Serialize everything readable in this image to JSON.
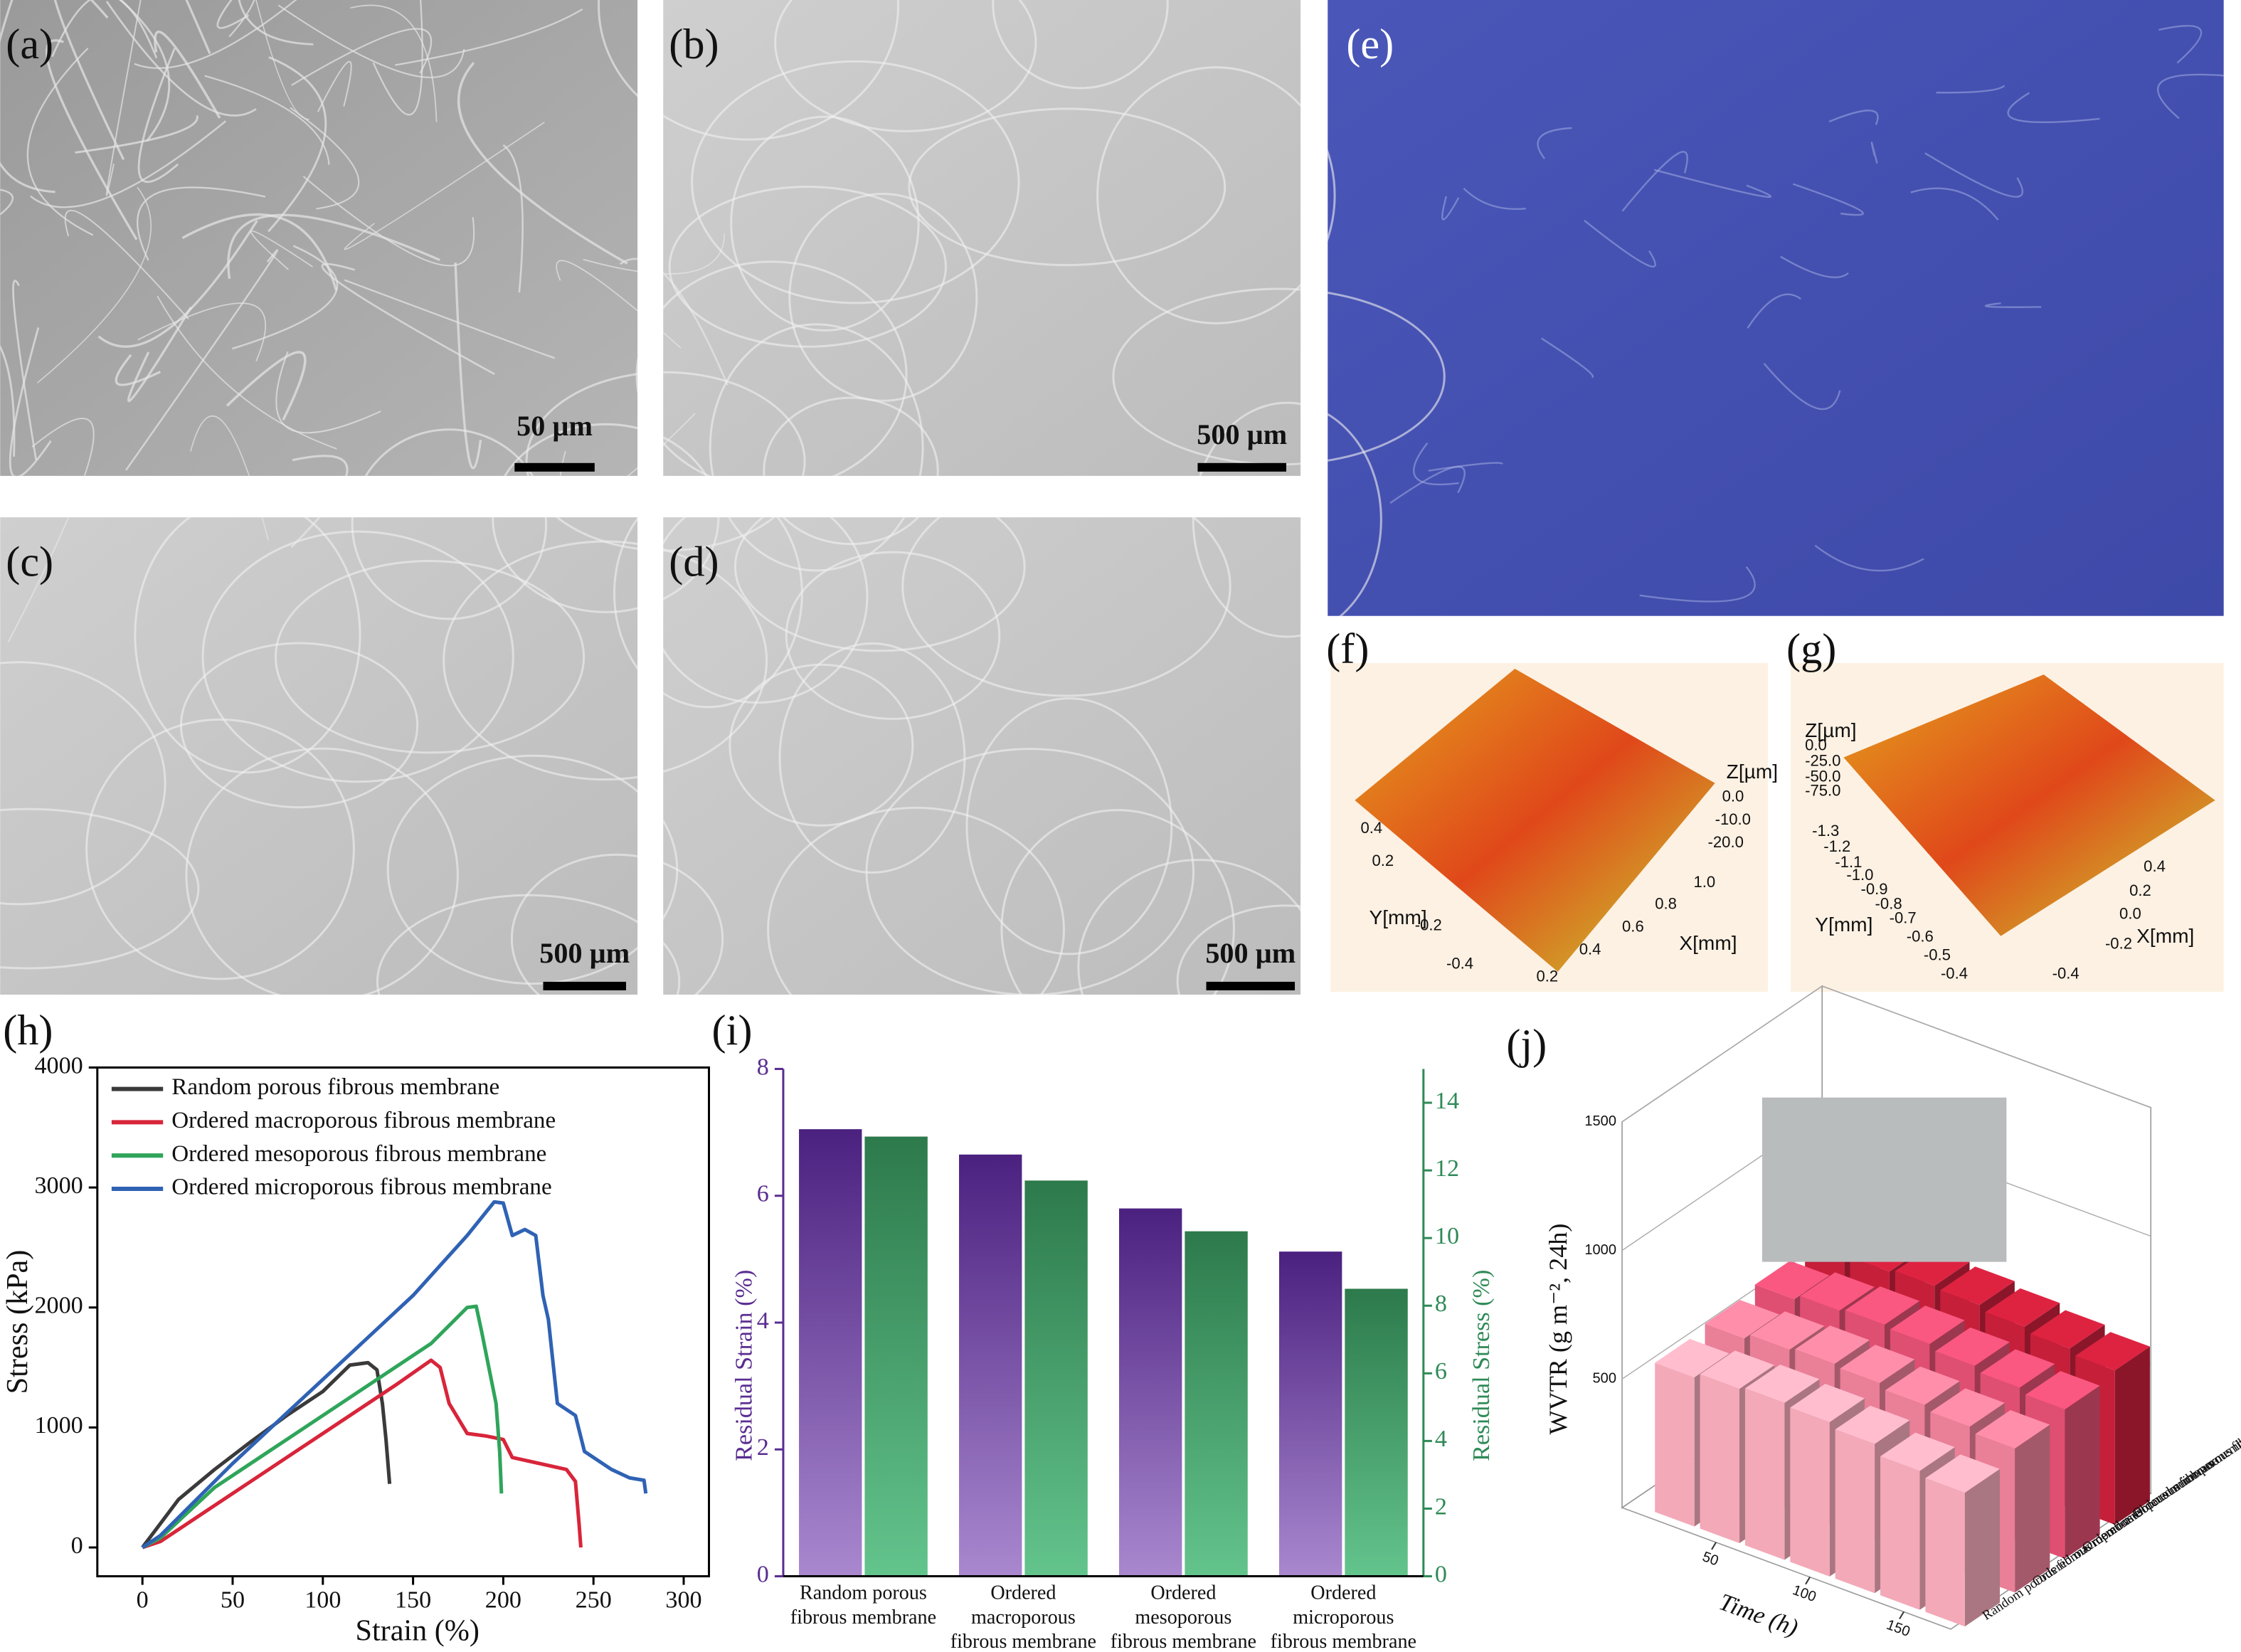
{
  "panels": [
    {
      "label": "(a)",
      "scale_bar": "50 µm"
    },
    {
      "label": "(b)",
      "scale_bar": "500 µm"
    },
    {
      "label": "(c)",
      "scale_bar": "500 µm"
    },
    {
      "label": "(d)",
      "scale_bar": "500 µm"
    },
    {
      "label": "(e)"
    },
    {
      "label": "(f)",
      "texts": [
        "Z[µm]",
        "0.0",
        "-10.0",
        "-20.0",
        "0.4",
        "0.2",
        "Y[mm]",
        "-0.2",
        "-0.4",
        "0.2",
        "0.4",
        "0.6",
        "0.8",
        "1.0",
        "X[mm]"
      ]
    },
    {
      "label": "(g)",
      "texts": [
        "Z[µm]",
        "0.0",
        "-25.0",
        "-50.0",
        "-75.0",
        "-1.3",
        "-1.2",
        "-1.1",
        "-1.0",
        "-0.9",
        "-0.8",
        "Y[mm]",
        "-0.7",
        "-0.6",
        "-0.5",
        "-0.4",
        "0.4",
        "0.2",
        "0.0",
        "X[mm]",
        "-0.2",
        "-0.4"
      ]
    }
  ],
  "chart_data": [
    {
      "type": "line",
      "label": "(h)",
      "x_label": "Strain (%)",
      "y_label": "Stress (kPa)",
      "xlim": [
        -25,
        314
      ],
      "ylim": [
        -240,
        4000
      ],
      "xticks": [
        0,
        50,
        100,
        150,
        200,
        250,
        300
      ],
      "yticks": [
        0,
        1000,
        2000,
        3000,
        4000
      ],
      "legend": "upper left",
      "series": [
        {
          "name": "Random porous fibrous membrane",
          "color": "#3a3a3a",
          "x": [
            0,
            10,
            20,
            40,
            60,
            80,
            100,
            115,
            125,
            130,
            133,
            135,
            137
          ],
          "values": [
            0,
            200,
            400,
            650,
            880,
            1100,
            1300,
            1520,
            1540,
            1480,
            1200,
            900,
            530
          ]
        },
        {
          "name": "Ordered macroporous fibrous membrane",
          "color": "#d8253a",
          "x": [
            0,
            10,
            30,
            60,
            90,
            100,
            120,
            140,
            160,
            165,
            170,
            180,
            190,
            200,
            205,
            220,
            235,
            240,
            242,
            243
          ],
          "values": [
            0,
            50,
            250,
            550,
            850,
            950,
            1150,
            1350,
            1560,
            1500,
            1200,
            950,
            930,
            900,
            750,
            700,
            650,
            550,
            200,
            0
          ]
        },
        {
          "name": "Ordered mesoporous fibrous membrane",
          "color": "#2fa55a",
          "x": [
            0,
            10,
            40,
            80,
            120,
            160,
            180,
            185,
            188,
            192,
            196,
            198,
            199
          ],
          "values": [
            0,
            80,
            500,
            900,
            1300,
            1700,
            2000,
            2010,
            1800,
            1500,
            1200,
            800,
            450
          ]
        },
        {
          "name": "Ordered microporous fibrous membrane",
          "color": "#2f62b4",
          "x": [
            0,
            10,
            50,
            100,
            150,
            180,
            195,
            200,
            205,
            212,
            218,
            222,
            225,
            230,
            240,
            245,
            260,
            270,
            278,
            279
          ],
          "values": [
            0,
            100,
            700,
            1400,
            2100,
            2600,
            2880,
            2870,
            2600,
            2650,
            2600,
            2100,
            1900,
            1200,
            1100,
            800,
            650,
            580,
            560,
            450
          ]
        }
      ]
    },
    {
      "type": "bar",
      "label": "(i)",
      "categories": [
        [
          "Random porous",
          "fibrous membrane"
        ],
        [
          "Ordered",
          "macroporous",
          "fibrous membrane"
        ],
        [
          "Ordered",
          "mesoporous",
          "fibrous membrane"
        ],
        [
          "Ordered",
          "microporous",
          "fibrous membrane"
        ]
      ],
      "y_label": "Residual Strain (%)",
      "y2_label": "Residual Stress (%)",
      "ylim": [
        0,
        8
      ],
      "yticks": [
        0,
        2,
        4,
        6,
        8
      ],
      "y2lim": [
        0,
        15
      ],
      "y2ticks": [
        0,
        2,
        4,
        6,
        8,
        10,
        12,
        14
      ],
      "series": [
        {
          "name": "Residual Strain",
          "color": "#5a2d91",
          "values": [
            7.05,
            6.65,
            5.8,
            5.12
          ]
        },
        {
          "name": "Residual Stress",
          "color": "#2f8a57",
          "axis": "y2",
          "values": [
            13.0,
            11.7,
            10.2,
            8.5
          ]
        }
      ]
    },
    {
      "type": "bar3d",
      "label": "(j)",
      "x_label": "Time (h)",
      "z_label": "WVTR (g m⁻², 24h)",
      "x": [
        24,
        48,
        72,
        96,
        120,
        144,
        168
      ],
      "xlim": [
        0,
        175
      ],
      "xticks": [
        50,
        100,
        150
      ],
      "zlim": [
        0,
        1500
      ],
      "zticks": [
        500,
        1000,
        1500
      ],
      "series": [
        {
          "name": "Random porous fibrous membrane",
          "color": "#f3a9b8",
          "values": [
            580,
            600,
            610,
            600,
            580,
            540,
            520
          ]
        },
        {
          "name": "Ordered macroporous fibrous membrane",
          "color": "#ea7f98",
          "values": [
            600,
            620,
            630,
            620,
            600,
            580,
            560
          ]
        },
        {
          "name": "Ordered mesoporous fibrous membrane",
          "color": "#df4f72",
          "values": [
            620,
            640,
            650,
            640,
            620,
            600,
            580
          ]
        },
        {
          "name": "Ordered microporous fibrous membrane",
          "color": "#c61f3a",
          "values": [
            640,
            660,
            670,
            660,
            640,
            620,
            600
          ]
        }
      ]
    }
  ]
}
